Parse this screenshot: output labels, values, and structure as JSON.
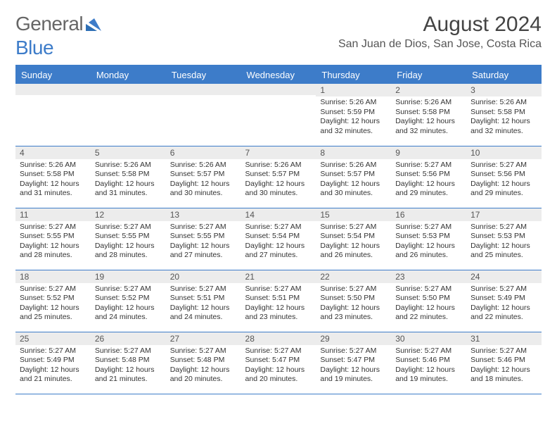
{
  "logo": {
    "text1": "General",
    "text2": "Blue"
  },
  "title": "August 2024",
  "location": "San Juan de Dios, San Jose, Costa Rica",
  "header_bg": "#3d7cc9",
  "day_headers": [
    "Sunday",
    "Monday",
    "Tuesday",
    "Wednesday",
    "Thursday",
    "Friday",
    "Saturday"
  ],
  "weeks": [
    [
      {
        "n": "",
        "sr": "",
        "ss": "",
        "dl": ""
      },
      {
        "n": "",
        "sr": "",
        "ss": "",
        "dl": ""
      },
      {
        "n": "",
        "sr": "",
        "ss": "",
        "dl": ""
      },
      {
        "n": "",
        "sr": "",
        "ss": "",
        "dl": ""
      },
      {
        "n": "1",
        "sr": "Sunrise: 5:26 AM",
        "ss": "Sunset: 5:59 PM",
        "dl": "Daylight: 12 hours and 32 minutes."
      },
      {
        "n": "2",
        "sr": "Sunrise: 5:26 AM",
        "ss": "Sunset: 5:58 PM",
        "dl": "Daylight: 12 hours and 32 minutes."
      },
      {
        "n": "3",
        "sr": "Sunrise: 5:26 AM",
        "ss": "Sunset: 5:58 PM",
        "dl": "Daylight: 12 hours and 32 minutes."
      }
    ],
    [
      {
        "n": "4",
        "sr": "Sunrise: 5:26 AM",
        "ss": "Sunset: 5:58 PM",
        "dl": "Daylight: 12 hours and 31 minutes."
      },
      {
        "n": "5",
        "sr": "Sunrise: 5:26 AM",
        "ss": "Sunset: 5:58 PM",
        "dl": "Daylight: 12 hours and 31 minutes."
      },
      {
        "n": "6",
        "sr": "Sunrise: 5:26 AM",
        "ss": "Sunset: 5:57 PM",
        "dl": "Daylight: 12 hours and 30 minutes."
      },
      {
        "n": "7",
        "sr": "Sunrise: 5:26 AM",
        "ss": "Sunset: 5:57 PM",
        "dl": "Daylight: 12 hours and 30 minutes."
      },
      {
        "n": "8",
        "sr": "Sunrise: 5:26 AM",
        "ss": "Sunset: 5:57 PM",
        "dl": "Daylight: 12 hours and 30 minutes."
      },
      {
        "n": "9",
        "sr": "Sunrise: 5:27 AM",
        "ss": "Sunset: 5:56 PM",
        "dl": "Daylight: 12 hours and 29 minutes."
      },
      {
        "n": "10",
        "sr": "Sunrise: 5:27 AM",
        "ss": "Sunset: 5:56 PM",
        "dl": "Daylight: 12 hours and 29 minutes."
      }
    ],
    [
      {
        "n": "11",
        "sr": "Sunrise: 5:27 AM",
        "ss": "Sunset: 5:55 PM",
        "dl": "Daylight: 12 hours and 28 minutes."
      },
      {
        "n": "12",
        "sr": "Sunrise: 5:27 AM",
        "ss": "Sunset: 5:55 PM",
        "dl": "Daylight: 12 hours and 28 minutes."
      },
      {
        "n": "13",
        "sr": "Sunrise: 5:27 AM",
        "ss": "Sunset: 5:55 PM",
        "dl": "Daylight: 12 hours and 27 minutes."
      },
      {
        "n": "14",
        "sr": "Sunrise: 5:27 AM",
        "ss": "Sunset: 5:54 PM",
        "dl": "Daylight: 12 hours and 27 minutes."
      },
      {
        "n": "15",
        "sr": "Sunrise: 5:27 AM",
        "ss": "Sunset: 5:54 PM",
        "dl": "Daylight: 12 hours and 26 minutes."
      },
      {
        "n": "16",
        "sr": "Sunrise: 5:27 AM",
        "ss": "Sunset: 5:53 PM",
        "dl": "Daylight: 12 hours and 26 minutes."
      },
      {
        "n": "17",
        "sr": "Sunrise: 5:27 AM",
        "ss": "Sunset: 5:53 PM",
        "dl": "Daylight: 12 hours and 25 minutes."
      }
    ],
    [
      {
        "n": "18",
        "sr": "Sunrise: 5:27 AM",
        "ss": "Sunset: 5:52 PM",
        "dl": "Daylight: 12 hours and 25 minutes."
      },
      {
        "n": "19",
        "sr": "Sunrise: 5:27 AM",
        "ss": "Sunset: 5:52 PM",
        "dl": "Daylight: 12 hours and 24 minutes."
      },
      {
        "n": "20",
        "sr": "Sunrise: 5:27 AM",
        "ss": "Sunset: 5:51 PM",
        "dl": "Daylight: 12 hours and 24 minutes."
      },
      {
        "n": "21",
        "sr": "Sunrise: 5:27 AM",
        "ss": "Sunset: 5:51 PM",
        "dl": "Daylight: 12 hours and 23 minutes."
      },
      {
        "n": "22",
        "sr": "Sunrise: 5:27 AM",
        "ss": "Sunset: 5:50 PM",
        "dl": "Daylight: 12 hours and 23 minutes."
      },
      {
        "n": "23",
        "sr": "Sunrise: 5:27 AM",
        "ss": "Sunset: 5:50 PM",
        "dl": "Daylight: 12 hours and 22 minutes."
      },
      {
        "n": "24",
        "sr": "Sunrise: 5:27 AM",
        "ss": "Sunset: 5:49 PM",
        "dl": "Daylight: 12 hours and 22 minutes."
      }
    ],
    [
      {
        "n": "25",
        "sr": "Sunrise: 5:27 AM",
        "ss": "Sunset: 5:49 PM",
        "dl": "Daylight: 12 hours and 21 minutes."
      },
      {
        "n": "26",
        "sr": "Sunrise: 5:27 AM",
        "ss": "Sunset: 5:48 PM",
        "dl": "Daylight: 12 hours and 21 minutes."
      },
      {
        "n": "27",
        "sr": "Sunrise: 5:27 AM",
        "ss": "Sunset: 5:48 PM",
        "dl": "Daylight: 12 hours and 20 minutes."
      },
      {
        "n": "28",
        "sr": "Sunrise: 5:27 AM",
        "ss": "Sunset: 5:47 PM",
        "dl": "Daylight: 12 hours and 20 minutes."
      },
      {
        "n": "29",
        "sr": "Sunrise: 5:27 AM",
        "ss": "Sunset: 5:47 PM",
        "dl": "Daylight: 12 hours and 19 minutes."
      },
      {
        "n": "30",
        "sr": "Sunrise: 5:27 AM",
        "ss": "Sunset: 5:46 PM",
        "dl": "Daylight: 12 hours and 19 minutes."
      },
      {
        "n": "31",
        "sr": "Sunrise: 5:27 AM",
        "ss": "Sunset: 5:46 PM",
        "dl": "Daylight: 12 hours and 18 minutes."
      }
    ]
  ]
}
